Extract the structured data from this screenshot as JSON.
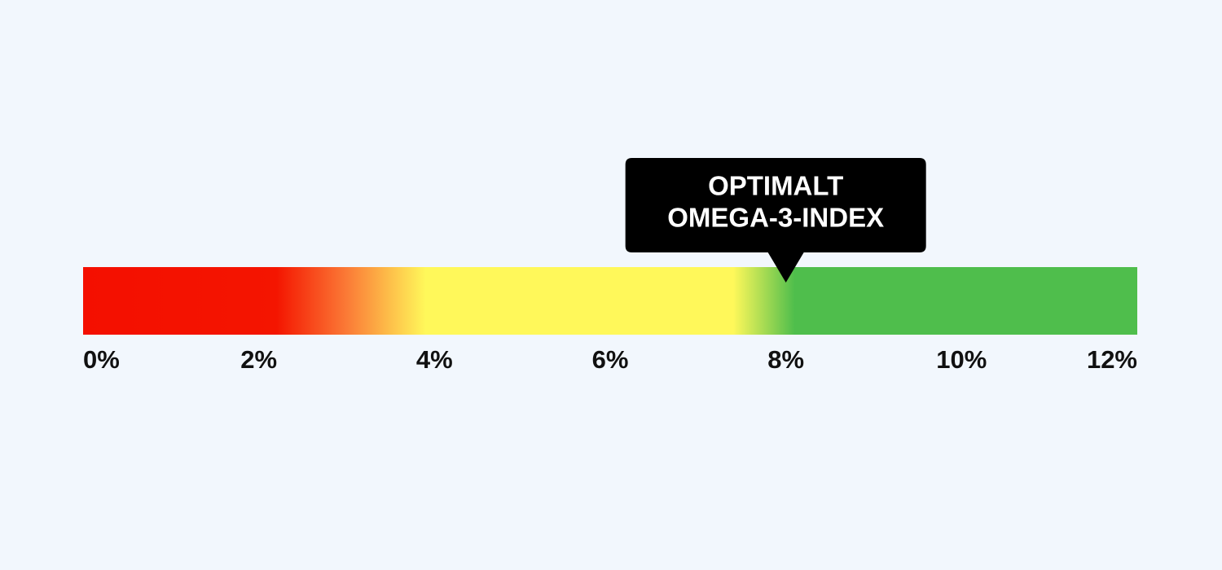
{
  "chart_data": {
    "type": "gauge",
    "xlim": [
      0,
      12
    ],
    "xticks": [
      {
        "value": 0,
        "label": "0%"
      },
      {
        "value": 2,
        "label": "2%"
      },
      {
        "value": 4,
        "label": "4%"
      },
      {
        "value": 6,
        "label": "6%"
      },
      {
        "value": 8,
        "label": "8%"
      },
      {
        "value": 10,
        "label": "10%"
      },
      {
        "value": 12,
        "label": "12%"
      }
    ],
    "color_stops": [
      {
        "value": 0,
        "color": "#f40f00"
      },
      {
        "value": 2.2,
        "color": "#f41500"
      },
      {
        "value": 3.0,
        "color": "#fb7a36"
      },
      {
        "value": 3.9,
        "color": "#fff85a"
      },
      {
        "value": 7.4,
        "color": "#fff85a"
      },
      {
        "value": 8.1,
        "color": "#4fbe4c"
      },
      {
        "value": 12,
        "color": "#4fbe4c"
      }
    ],
    "annotation": {
      "value": 8,
      "text": [
        "OPTIMALT",
        "OMEGA-3-INDEX"
      ]
    }
  }
}
